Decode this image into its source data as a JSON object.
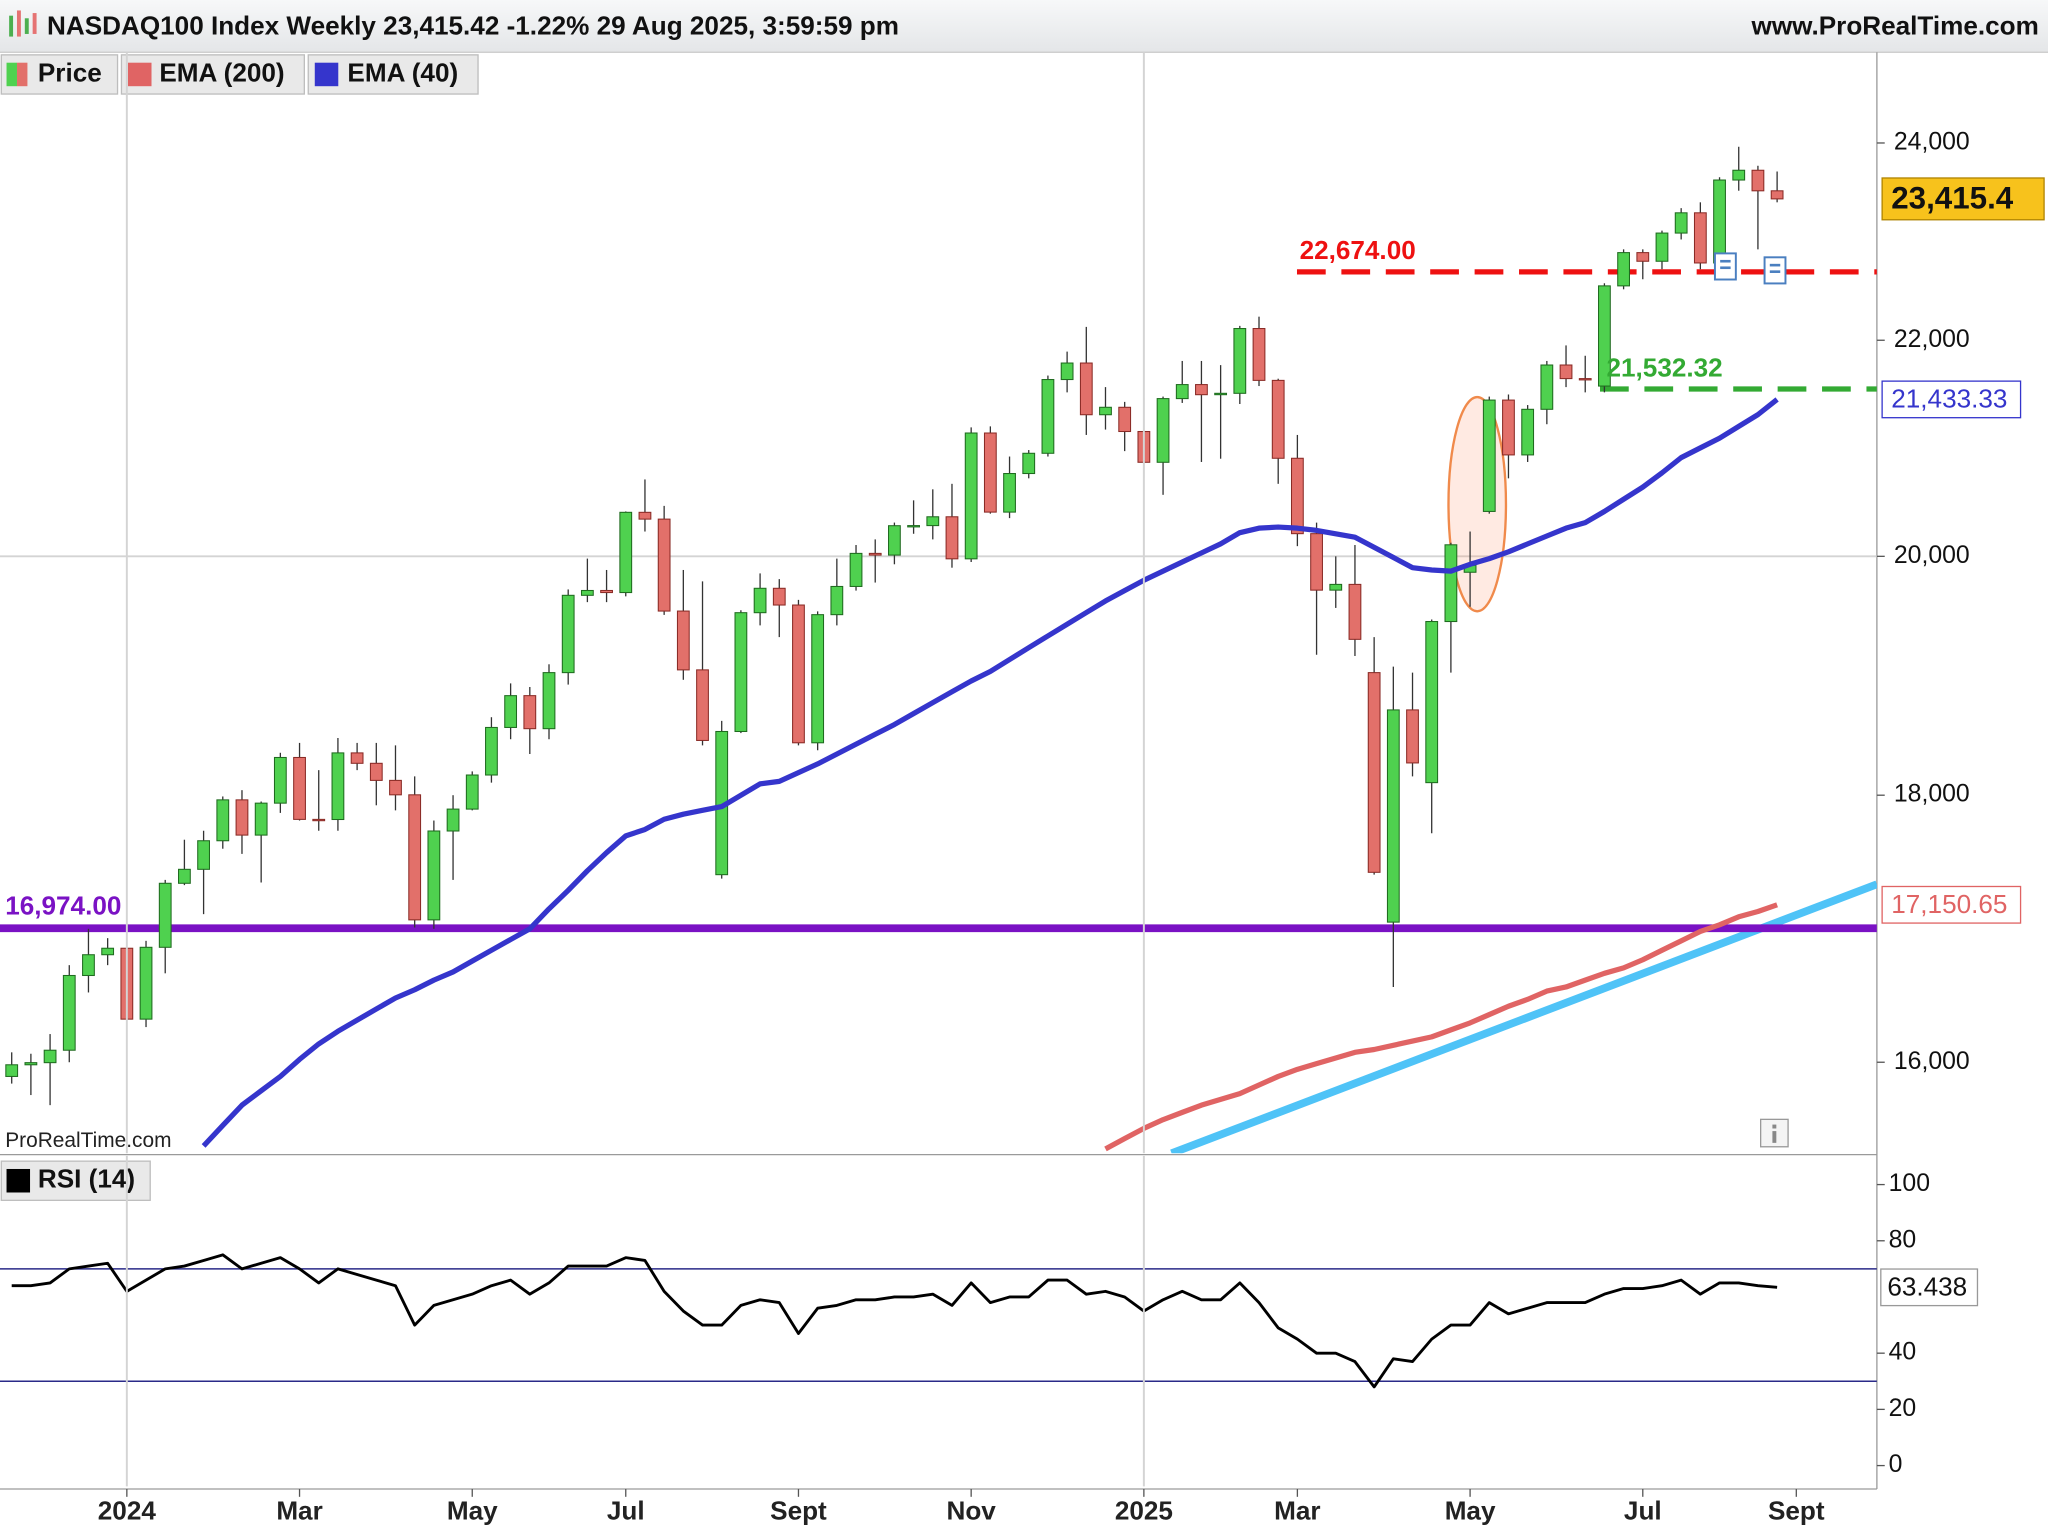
{
  "chart_data": [
    {
      "type": "candlestick",
      "title": "NASDAQ100 Index Weekly 23,415.42 -1.22% 29 Aug 2025, 3:59:59 pm",
      "source": "www.ProRealTime.com",
      "watermark": "ProRealTime.com",
      "log_scale": true,
      "xlim": [
        -0.61,
        97.2
      ],
      "xticks": [
        {
          "value": 6,
          "label": "2024"
        },
        {
          "value": 15,
          "label": "Mar"
        },
        {
          "value": 24,
          "label": "May"
        },
        {
          "value": 32,
          "label": "Jul"
        },
        {
          "value": 41,
          "label": "Sept"
        },
        {
          "value": 50,
          "label": "Nov"
        },
        {
          "value": 59,
          "label": "2025"
        },
        {
          "value": 67,
          "label": "Mar"
        },
        {
          "value": 76,
          "label": "May"
        },
        {
          "value": 85,
          "label": "Jul"
        },
        {
          "value": 93,
          "label": "Sept"
        }
      ],
      "ylim": [
        15370,
        24980
      ],
      "yticks": [
        {
          "value": 16000,
          "label": "16,000"
        },
        {
          "value": 18000,
          "label": "18,000"
        },
        {
          "value": 20000,
          "label": "20,000"
        },
        {
          "value": 22000,
          "label": "22,000"
        },
        {
          "value": 24000,
          "label": "24,000"
        }
      ],
      "grid_values": [
        20000
      ],
      "series": [
        {
          "name": "Price",
          "up_color": "#4fd14f",
          "down_color": "#e2706a",
          "last_value_label": "23,415.4",
          "open": [
            15900,
            15982,
            15997,
            16085,
            16624,
            16777,
            16825,
            16307,
            16832,
            17314,
            17421,
            17642,
            17963,
            17686,
            17937,
            18302,
            17809,
            17808,
            18339,
            18255,
            18118,
            18003,
            17037,
            17718,
            17890,
            18161,
            18546,
            18808,
            18536,
            19000,
            19659,
            19701,
            19683,
            20392,
            20331,
            19523,
            19023,
            17380,
            18513,
            19509,
            19720,
            19575,
            18421,
            19492,
            19736,
            20026,
            20011,
            20272,
            20273,
            20352,
            19978,
            21118,
            20394,
            20744,
            20930,
            21622,
            21780,
            21289,
            21359,
            21132,
            20847,
            21441,
            21574,
            21478,
            21491,
            22114,
            21614,
            20884,
            20201,
            19704,
            19754,
            19000,
            17020,
            18690,
            18100,
            19433,
            19860,
            20400,
            21427,
            20915,
            21340,
            21761,
            21631,
            21560,
            22534,
            22867,
            22780,
            23065,
            23272,
            22763,
            23611,
            23713,
            23499
          ],
          "high": [
            16070,
            16060,
            16200,
            16700,
            16970,
            16900,
            16840,
            16880,
            17340,
            17650,
            17720,
            17990,
            18040,
            17950,
            18340,
            18420,
            18200,
            18460,
            18420,
            18420,
            18400,
            18150,
            17800,
            18000,
            18190,
            18630,
            18910,
            18880,
            19070,
            19710,
            19980,
            19880,
            20400,
            20690,
            20450,
            19880,
            19780,
            18600,
            19530,
            19850,
            19800,
            19620,
            19520,
            19980,
            20100,
            20150,
            20300,
            20500,
            20600,
            20650,
            21170,
            21180,
            20900,
            20960,
            21660,
            21890,
            22130,
            21550,
            21410,
            21450,
            21460,
            21800,
            21800,
            21760,
            22140,
            22230,
            21630,
            21100,
            20300,
            20000,
            20100,
            19300,
            19050,
            19000,
            19450,
            20120,
            20220,
            21460,
            21480,
            21380,
            21800,
            21950,
            21850,
            22560,
            22900,
            22900,
            23090,
            23320,
            23380,
            23640,
            23960,
            23760,
            23700
          ],
          "low": [
            15850,
            15770,
            15700,
            16000,
            16500,
            16700,
            16170,
            16250,
            16640,
            17300,
            17080,
            17580,
            17540,
            17320,
            17860,
            17800,
            17720,
            17720,
            18200,
            17920,
            17880,
            16980,
            16970,
            17340,
            17880,
            18100,
            18450,
            18330,
            18450,
            18900,
            19600,
            19600,
            19650,
            20220,
            19490,
            18940,
            18400,
            17350,
            18500,
            19400,
            19300,
            18400,
            18360,
            19400,
            19700,
            19770,
            19930,
            20200,
            20150,
            19900,
            19950,
            20380,
            20340,
            20700,
            20900,
            21500,
            21100,
            21150,
            20950,
            20700,
            20550,
            21400,
            20850,
            20880,
            21390,
            21560,
            20650,
            20090,
            19150,
            19550,
            19140,
            17380,
            16540,
            18150,
            17700,
            19000,
            19560,
            20380,
            20700,
            20850,
            21200,
            21550,
            21500,
            21500,
            22500,
            22600,
            22700,
            23000,
            22700,
            22740,
            23500,
            22900,
            23380
          ],
          "close": [
            15982,
            15997,
            16085,
            16624,
            16777,
            16825,
            16307,
            16832,
            17314,
            17421,
            17642,
            17963,
            17686,
            17937,
            18302,
            17809,
            17808,
            18339,
            18255,
            18118,
            18003,
            17037,
            17718,
            17890,
            18161,
            18546,
            18808,
            18536,
            19000,
            19659,
            19701,
            19683,
            20392,
            20331,
            19523,
            19023,
            18440,
            18513,
            19509,
            19720,
            19575,
            18421,
            19492,
            19736,
            20026,
            20011,
            20272,
            20273,
            20352,
            19978,
            21118,
            20394,
            20744,
            20930,
            21622,
            21780,
            21289,
            21359,
            21132,
            20847,
            21441,
            21574,
            21478,
            21491,
            22114,
            21614,
            20884,
            20201,
            19704,
            19754,
            19281,
            17398,
            18690,
            18258,
            19433,
            20102,
            19921,
            21427,
            20915,
            21340,
            21761,
            21631,
            21626,
            22534,
            22867,
            22780,
            23065,
            23272,
            22763,
            23611,
            23713,
            23499,
            23415.42
          ]
        },
        {
          "name": "EMA (200)",
          "color": "#e06464",
          "last_value_label": "17,150.65",
          "values": [
            null,
            null,
            null,
            null,
            null,
            null,
            null,
            null,
            null,
            null,
            null,
            null,
            null,
            null,
            null,
            null,
            null,
            null,
            null,
            null,
            null,
            null,
            null,
            null,
            null,
            null,
            null,
            null,
            null,
            null,
            null,
            null,
            null,
            null,
            null,
            null,
            null,
            null,
            null,
            null,
            null,
            null,
            null,
            null,
            null,
            null,
            null,
            null,
            null,
            null,
            null,
            null,
            null,
            null,
            null,
            null,
            null,
            15400,
            15470,
            15540,
            15600,
            15650,
            15700,
            15740,
            15780,
            15840,
            15900,
            15950,
            15990,
            16030,
            16070,
            16090,
            16120,
            16150,
            16180,
            16230,
            16280,
            16340,
            16400,
            16450,
            16510,
            16540,
            16590,
            16640,
            16680,
            16740,
            16810,
            16880,
            16950,
            17000,
            17060,
            17100,
            17150.65
          ]
        },
        {
          "name": "EMA (40)",
          "color": "#3535cc",
          "last_value_label": "21,433.33",
          "values": [
            null,
            null,
            null,
            null,
            null,
            null,
            null,
            null,
            null,
            null,
            15420,
            15560,
            15700,
            15800,
            15900,
            16020,
            16130,
            16220,
            16300,
            16380,
            16460,
            16520,
            16590,
            16650,
            16730,
            16810,
            16890,
            16970,
            17120,
            17260,
            17410,
            17550,
            17680,
            17730,
            17810,
            17850,
            17880,
            17910,
            18000,
            18090,
            18110,
            18180,
            18250,
            18330,
            18410,
            18490,
            18570,
            18660,
            18750,
            18840,
            18930,
            19010,
            19110,
            19210,
            19310,
            19410,
            19510,
            19610,
            19700,
            19790,
            19870,
            19950,
            20030,
            20110,
            20210,
            20250,
            20260,
            20250,
            20230,
            20200,
            20170,
            20080,
            19990,
            19900,
            19880,
            19870,
            19930,
            19980,
            20040,
            20110,
            20180,
            20250,
            20300,
            20400,
            20510,
            20620,
            20750,
            20890,
            20980,
            21070,
            21180,
            21290,
            21433.33
          ]
        }
      ],
      "levels": [
        {
          "value": 22674,
          "label": "22,674.00",
          "color": "#ee1111",
          "style": "dashed"
        },
        {
          "value": 21532.32,
          "label": "21,532.32",
          "color": "#33aa33",
          "style": "dashed"
        },
        {
          "value": 16974,
          "label": "16,974.00",
          "color": "#7a12c4",
          "style": "solid"
        }
      ]
    },
    {
      "type": "line",
      "title": "RSI (14)",
      "ylim": [
        -7.4,
        110.2
      ],
      "yticks": [
        0,
        20,
        40,
        80,
        100
      ],
      "levels": [
        30,
        70
      ],
      "level_color": "#2a2a88",
      "series": [
        {
          "color": "#000000",
          "last_value_label": "63.438",
          "values": [
            64,
            64,
            65,
            70,
            71,
            72,
            62,
            66,
            70,
            71,
            73,
            75,
            70,
            72,
            74,
            70,
            65,
            70,
            68,
            66,
            64,
            50,
            57,
            59,
            61,
            64,
            66,
            61,
            65,
            71,
            71,
            71,
            74,
            73,
            62,
            55,
            50,
            50,
            57,
            59,
            58,
            47,
            56,
            57,
            59,
            59,
            60,
            60,
            61,
            57,
            65,
            58,
            60,
            60,
            66,
            66,
            61,
            62,
            60,
            55,
            59,
            62,
            59,
            59,
            65,
            58,
            49,
            45,
            40,
            40,
            37,
            28,
            38,
            37,
            45,
            50,
            50,
            58,
            54,
            56,
            58,
            58,
            58,
            61,
            63,
            63,
            64,
            66,
            61,
            65,
            65,
            64,
            63.438
          ]
        }
      ]
    }
  ]
}
